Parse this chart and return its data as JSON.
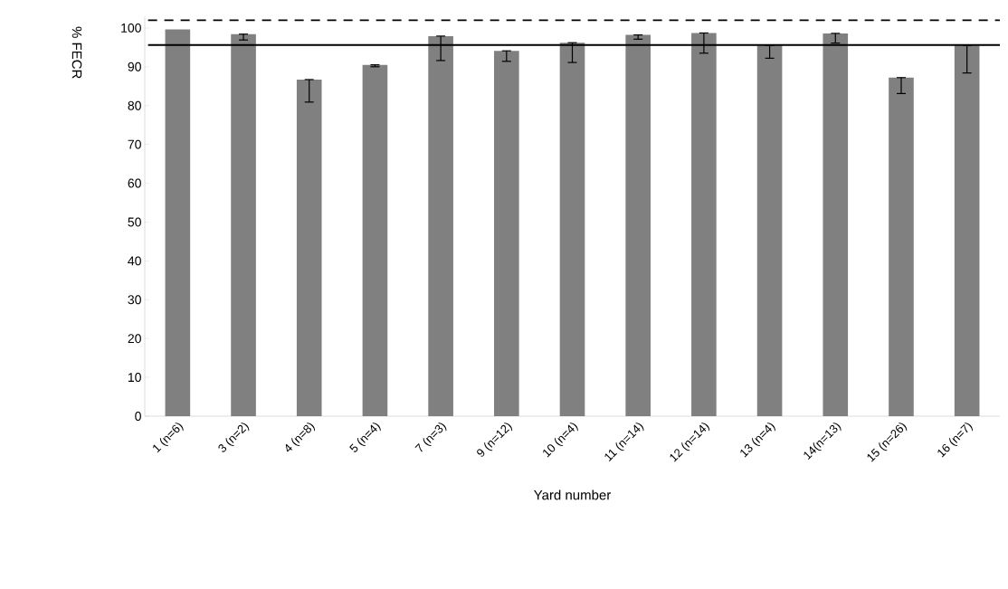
{
  "chart_data": {
    "type": "bar",
    "xlabel": "Yard number",
    "ylabel": "% FECR",
    "categories": [
      "1 (n=6)",
      "3 (n=2)",
      "4 (n=8)",
      "5 (n=4)",
      "7 (n=3)",
      "9 (n=12)",
      "10 (n=4)",
      "11 (n=14)",
      "12 (n=14)",
      "13 (n=4)",
      "14(n=13)",
      "15 (n=26)",
      "16 (n=7)"
    ],
    "values": [
      99.6,
      98.4,
      86.7,
      90.5,
      97.9,
      94.1,
      96.2,
      98.2,
      98.7,
      95.5,
      98.6,
      87.2,
      95.5
    ],
    "errors": [
      null,
      [
        96.9,
        98.4
      ],
      [
        80.9,
        86.7
      ],
      [
        90.0,
        90.5
      ],
      [
        91.6,
        97.9
      ],
      [
        91.4,
        94.1
      ],
      [
        91.1,
        96.2
      ],
      [
        97.1,
        98.2
      ],
      [
        93.5,
        98.7
      ],
      [
        92.2,
        95.5
      ],
      [
        96.1,
        98.6
      ],
      [
        83.1,
        87.2
      ],
      [
        88.4,
        95.5
      ]
    ],
    "color": "#808080",
    "ylim": [
      0,
      103
    ],
    "yticks": [
      0,
      10,
      20,
      30,
      40,
      50,
      60,
      70,
      80,
      90,
      100
    ],
    "ref_lines": [
      {
        "axis": "y",
        "value": 95.6,
        "line_style": "solid",
        "color": "#000000"
      },
      {
        "axis": "y",
        "value": 102,
        "line_style": "dashed",
        "color": "#000000"
      }
    ],
    "grid": false
  }
}
